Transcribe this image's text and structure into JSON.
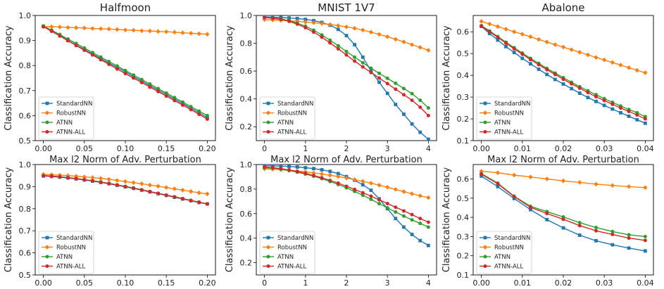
{
  "figure": {
    "colors": {
      "StandardNN": "#1f77b4",
      "RobustNN": "#ff7f0e",
      "ATNN": "#2ca02c",
      "ATNN-ALL": "#d62728"
    },
    "markers": {
      "StandardNN": "square",
      "RobustNN": "diamond",
      "ATNN": "circle",
      "ATNN-ALL": "circle"
    }
  },
  "chart_data": [
    {
      "type": "line",
      "title": "Halfmoon",
      "xlabel": "Max l2 Norm of Adv. Perturbation",
      "ylabel": "Classification Accuracy",
      "xlim": [
        -0.01,
        0.21
      ],
      "ylim": [
        0.5,
        1.0
      ],
      "xticks": [
        0,
        0.05,
        0.1,
        0.15,
        0.2
      ],
      "xticklabels": [
        "0.00",
        "0.05",
        "0.10",
        "0.15",
        "0.20"
      ],
      "yticks": [
        0.5,
        0.6,
        0.7,
        0.8,
        0.9,
        1.0
      ],
      "yticklabels": [
        "0.5",
        "0.6",
        "0.7",
        "0.8",
        "0.9",
        "1.0"
      ],
      "legend": "lower-left",
      "x": [
        0,
        0.01,
        0.02,
        0.03,
        0.04,
        0.05,
        0.06,
        0.07,
        0.08,
        0.09,
        0.1,
        0.11,
        0.12,
        0.13,
        0.14,
        0.15,
        0.16,
        0.17,
        0.18,
        0.19,
        0.2
      ],
      "series": [
        {
          "name": "StandardNN",
          "values": [
            0.957,
            0.939,
            0.92,
            0.9,
            0.882,
            0.864,
            0.846,
            0.828,
            0.81,
            0.792,
            0.775,
            0.756,
            0.738,
            0.72,
            0.702,
            0.684,
            0.666,
            0.648,
            0.63,
            0.611,
            0.592
          ]
        },
        {
          "name": "RobustNN",
          "values": [
            0.955,
            0.955,
            0.954,
            0.952,
            0.951,
            0.95,
            0.948,
            0.947,
            0.946,
            0.944,
            0.942,
            0.941,
            0.939,
            0.938,
            0.936,
            0.935,
            0.933,
            0.931,
            0.929,
            0.927,
            0.925
          ]
        },
        {
          "name": "ATNN",
          "values": [
            0.958,
            0.941,
            0.924,
            0.906,
            0.888,
            0.87,
            0.852,
            0.834,
            0.816,
            0.798,
            0.78,
            0.762,
            0.744,
            0.726,
            0.708,
            0.69,
            0.672,
            0.654,
            0.636,
            0.618,
            0.6
          ]
        },
        {
          "name": "ATNN-ALL",
          "values": [
            0.955,
            0.937,
            0.918,
            0.899,
            0.88,
            0.861,
            0.842,
            0.823,
            0.805,
            0.786,
            0.768,
            0.75,
            0.732,
            0.714,
            0.696,
            0.678,
            0.66,
            0.642,
            0.624,
            0.605,
            0.586
          ]
        }
      ]
    },
    {
      "type": "line",
      "title": "MNIST 1V7",
      "xlabel": "Max l2 Norm of Adv. Perturbation",
      "ylabel": "Classification Accuracy",
      "xlim": [
        -0.2,
        4.2
      ],
      "ylim": [
        0.1,
        1.0
      ],
      "xticks": [
        0,
        1,
        2,
        3,
        4
      ],
      "xticklabels": [
        "0",
        "1",
        "2",
        "3",
        "4"
      ],
      "yticks": [
        0.2,
        0.4,
        0.6,
        0.8,
        1.0
      ],
      "yticklabels": [
        "0.2",
        "0.4",
        "0.6",
        "0.8",
        "1.0"
      ],
      "legend": "lower-left",
      "x": [
        0,
        0.2,
        0.4,
        0.6,
        0.8,
        1.0,
        1.2,
        1.4,
        1.6,
        1.8,
        2.0,
        2.2,
        2.4,
        2.6,
        2.8,
        3.0,
        3.2,
        3.4,
        3.6,
        3.8,
        4.0
      ],
      "series": [
        {
          "name": "StandardNN",
          "values": [
            0.99,
            0.988,
            0.985,
            0.982,
            0.978,
            0.972,
            0.963,
            0.95,
            0.93,
            0.9,
            0.855,
            0.79,
            0.7,
            0.6,
            0.52,
            0.44,
            0.36,
            0.29,
            0.22,
            0.16,
            0.11
          ]
        },
        {
          "name": "RobustNN",
          "values": [
            0.97,
            0.968,
            0.965,
            0.962,
            0.958,
            0.953,
            0.948,
            0.942,
            0.935,
            0.927,
            0.918,
            0.908,
            0.895,
            0.88,
            0.864,
            0.847,
            0.829,
            0.81,
            0.79,
            0.77,
            0.75
          ]
        },
        {
          "name": "ATNN",
          "values": [
            0.985,
            0.982,
            0.975,
            0.963,
            0.945,
            0.922,
            0.894,
            0.86,
            0.822,
            0.782,
            0.741,
            0.7,
            0.66,
            0.621,
            0.584,
            0.548,
            0.512,
            0.475,
            0.438,
            0.39,
            0.335
          ]
        },
        {
          "name": "ATNN-ALL",
          "values": [
            0.985,
            0.98,
            0.972,
            0.958,
            0.938,
            0.912,
            0.88,
            0.844,
            0.803,
            0.76,
            0.716,
            0.672,
            0.63,
            0.59,
            0.55,
            0.51,
            0.47,
            0.43,
            0.39,
            0.34,
            0.28
          ]
        }
      ]
    },
    {
      "type": "line",
      "title": "Abalone",
      "xlabel": "Max l2 Norm of Adv. Perturbation",
      "ylabel": "Classification Accuracy",
      "xlim": [
        -0.002,
        0.042
      ],
      "ylim": [
        0.1,
        0.675
      ],
      "xticks": [
        0,
        0.01,
        0.02,
        0.03,
        0.04
      ],
      "xticklabels": [
        "0.00",
        "0.01",
        "0.02",
        "0.03",
        "0.04"
      ],
      "yticks": [
        0.1,
        0.2,
        0.3,
        0.4,
        0.5,
        0.6
      ],
      "yticklabels": [
        "0.1",
        "0.2",
        "0.3",
        "0.4",
        "0.5",
        "0.6"
      ],
      "legend": "lower-left",
      "x": [
        0,
        0.002,
        0.004,
        0.006,
        0.008,
        0.01,
        0.012,
        0.014,
        0.016,
        0.018,
        0.02,
        0.022,
        0.024,
        0.026,
        0.028,
        0.03,
        0.032,
        0.034,
        0.036,
        0.038,
        0.04
      ],
      "series": [
        {
          "name": "StandardNN",
          "values": [
            0.625,
            0.592,
            0.562,
            0.532,
            0.505,
            0.478,
            0.453,
            0.428,
            0.404,
            0.381,
            0.36,
            0.339,
            0.318,
            0.298,
            0.28,
            0.262,
            0.245,
            0.228,
            0.212,
            0.196,
            0.18
          ]
        },
        {
          "name": "RobustNN",
          "values": [
            0.648,
            0.636,
            0.624,
            0.612,
            0.6,
            0.589,
            0.577,
            0.565,
            0.553,
            0.541,
            0.53,
            0.518,
            0.506,
            0.494,
            0.482,
            0.471,
            0.459,
            0.447,
            0.435,
            0.423,
            0.412
          ]
        },
        {
          "name": "ATNN",
          "values": [
            0.628,
            0.604,
            0.578,
            0.552,
            0.527,
            0.502,
            0.478,
            0.455,
            0.432,
            0.41,
            0.389,
            0.368,
            0.348,
            0.329,
            0.311,
            0.293,
            0.276,
            0.259,
            0.243,
            0.228,
            0.21
          ]
        },
        {
          "name": "ATNN-ALL",
          "values": [
            0.626,
            0.6,
            0.575,
            0.548,
            0.522,
            0.497,
            0.472,
            0.449,
            0.426,
            0.404,
            0.382,
            0.361,
            0.341,
            0.321,
            0.302,
            0.284,
            0.267,
            0.25,
            0.234,
            0.218,
            0.2
          ]
        }
      ]
    },
    {
      "type": "line",
      "title": "",
      "xlabel": "Max l2 Norm of Adv. Perturbation",
      "ylabel": "Classification Accuracy",
      "xlim": [
        -0.01,
        0.21
      ],
      "ylim": [
        0.5,
        1.0
      ],
      "xticks": [
        0,
        0.05,
        0.1,
        0.15,
        0.2
      ],
      "xticklabels": [
        "0.00",
        "0.05",
        "0.10",
        "0.15",
        "0.20"
      ],
      "yticks": [
        0.5,
        0.6,
        0.7,
        0.8,
        0.9,
        1.0
      ],
      "yticklabels": [
        "0.5",
        "0.6",
        "0.7",
        "0.8",
        "0.9",
        "1.0"
      ],
      "legend": "lower-left",
      "x": [
        0,
        0.01,
        0.02,
        0.03,
        0.04,
        0.05,
        0.06,
        0.07,
        0.08,
        0.09,
        0.1,
        0.11,
        0.12,
        0.13,
        0.14,
        0.15,
        0.16,
        0.17,
        0.18,
        0.19,
        0.2
      ],
      "series": [
        {
          "name": "StandardNN",
          "values": [
            0.948,
            0.946,
            0.943,
            0.939,
            0.935,
            0.93,
            0.925,
            0.919,
            0.913,
            0.906,
            0.899,
            0.892,
            0.884,
            0.876,
            0.868,
            0.86,
            0.852,
            0.844,
            0.836,
            0.828,
            0.822
          ]
        },
        {
          "name": "RobustNN",
          "values": [
            0.955,
            0.954,
            0.952,
            0.95,
            0.947,
            0.944,
            0.941,
            0.937,
            0.933,
            0.928,
            0.923,
            0.918,
            0.913,
            0.907,
            0.902,
            0.896,
            0.89,
            0.884,
            0.878,
            0.872,
            0.867
          ]
        },
        {
          "name": "ATNN",
          "values": [
            0.95,
            0.948,
            0.945,
            0.941,
            0.937,
            0.932,
            0.927,
            0.921,
            0.915,
            0.908,
            0.901,
            0.894,
            0.886,
            0.878,
            0.87,
            0.862,
            0.854,
            0.846,
            0.838,
            0.83,
            0.822
          ]
        },
        {
          "name": "ATNN-ALL",
          "values": [
            0.949,
            0.947,
            0.944,
            0.94,
            0.936,
            0.931,
            0.926,
            0.92,
            0.914,
            0.907,
            0.9,
            0.893,
            0.885,
            0.877,
            0.869,
            0.861,
            0.853,
            0.845,
            0.837,
            0.829,
            0.821
          ]
        }
      ]
    },
    {
      "type": "line",
      "title": "",
      "xlabel": "Max l2 Norm of Adv. Perturbation",
      "ylabel": "Classification Accuracy",
      "xlim": [
        -0.2,
        4.2
      ],
      "ylim": [
        0.1,
        1.0
      ],
      "xticks": [
        0,
        1,
        2,
        3,
        4
      ],
      "xticklabels": [
        "0",
        "1",
        "2",
        "3",
        "4"
      ],
      "yticks": [
        0.2,
        0.4,
        0.6,
        0.8,
        1.0
      ],
      "yticklabels": [
        "0.2",
        "0.4",
        "0.6",
        "0.8",
        "1.0"
      ],
      "legend": "lower-left",
      "x": [
        0,
        0.2,
        0.4,
        0.6,
        0.8,
        1.0,
        1.2,
        1.4,
        1.6,
        1.8,
        2.0,
        2.2,
        2.4,
        2.6,
        2.8,
        3.0,
        3.2,
        3.4,
        3.6,
        3.8,
        4.0
      ],
      "series": [
        {
          "name": "StandardNN",
          "values": [
            0.99,
            0.989,
            0.987,
            0.984,
            0.98,
            0.974,
            0.967,
            0.957,
            0.944,
            0.926,
            0.902,
            0.872,
            0.835,
            0.79,
            0.72,
            0.64,
            0.56,
            0.49,
            0.43,
            0.38,
            0.34
          ]
        },
        {
          "name": "RobustNN",
          "values": [
            0.965,
            0.962,
            0.958,
            0.953,
            0.947,
            0.94,
            0.932,
            0.923,
            0.913,
            0.902,
            0.89,
            0.877,
            0.863,
            0.848,
            0.832,
            0.815,
            0.797,
            0.779,
            0.762,
            0.745,
            0.73
          ]
        },
        {
          "name": "ATNN",
          "values": [
            0.975,
            0.97,
            0.962,
            0.951,
            0.938,
            0.922,
            0.905,
            0.885,
            0.862,
            0.837,
            0.81,
            0.781,
            0.75,
            0.716,
            0.681,
            0.647,
            0.613,
            0.58,
            0.549,
            0.52,
            0.49
          ]
        },
        {
          "name": "ATNN-ALL",
          "values": [
            0.98,
            0.975,
            0.967,
            0.956,
            0.943,
            0.928,
            0.911,
            0.892,
            0.871,
            0.848,
            0.823,
            0.797,
            0.77,
            0.742,
            0.712,
            0.682,
            0.652,
            0.622,
            0.592,
            0.56,
            0.53
          ]
        }
      ]
    },
    {
      "type": "line",
      "title": "",
      "xlabel": "Max l2 Norm of Adv. Perturbation",
      "ylabel": "Classification Accuracy",
      "xlim": [
        -0.002,
        0.042
      ],
      "ylim": [
        0.1,
        0.675
      ],
      "xticks": [
        0,
        0.01,
        0.02,
        0.03,
        0.04
      ],
      "xticklabels": [
        "0.00",
        "0.01",
        "0.02",
        "0.03",
        "0.04"
      ],
      "yticks": [
        0.1,
        0.2,
        0.3,
        0.4,
        0.5,
        0.6
      ],
      "yticklabels": [
        "0.1",
        "0.2",
        "0.3",
        "0.4",
        "0.5",
        "0.6"
      ],
      "legend": "lower-left",
      "x": [
        0,
        0.004,
        0.008,
        0.012,
        0.016,
        0.02,
        0.024,
        0.028,
        0.032,
        0.036,
        0.04
      ],
      "series": [
        {
          "name": "StandardNN",
          "values": [
            0.615,
            0.56,
            0.498,
            0.44,
            0.388,
            0.345,
            0.307,
            0.278,
            0.257,
            0.24,
            0.225
          ]
        },
        {
          "name": "RobustNN",
          "values": [
            0.64,
            0.632,
            0.62,
            0.61,
            0.6,
            0.59,
            0.582,
            0.573,
            0.566,
            0.56,
            0.555
          ]
        },
        {
          "name": "ATNN",
          "values": [
            0.628,
            0.578,
            0.51,
            0.457,
            0.43,
            0.402,
            0.372,
            0.347,
            0.326,
            0.309,
            0.3
          ]
        },
        {
          "name": "ATNN-ALL",
          "values": [
            0.625,
            0.575,
            0.508,
            0.452,
            0.42,
            0.39,
            0.357,
            0.33,
            0.311,
            0.292,
            0.28
          ]
        }
      ]
    }
  ]
}
